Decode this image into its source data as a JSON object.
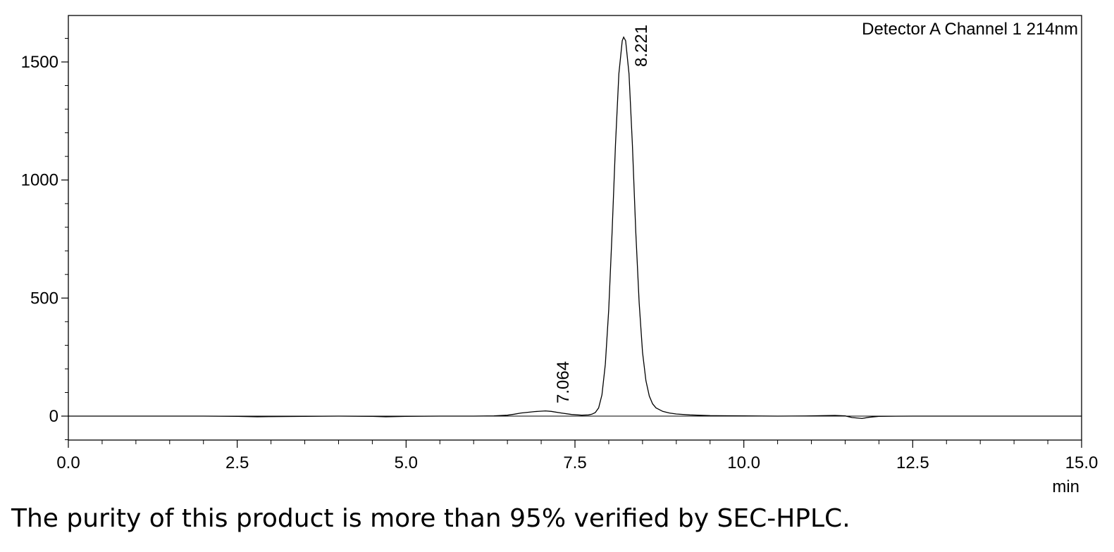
{
  "chart_data": {
    "type": "line",
    "title": "Detector A Channel 1 214nm",
    "xlabel": "min",
    "ylabel": "",
    "xlim": [
      0.0,
      15.0
    ],
    "ylim": [
      -100,
      1700
    ],
    "x_ticks": [
      "0.0",
      "2.5",
      "5.0",
      "7.5",
      "10.0",
      "12.5",
      "15.0"
    ],
    "x_tick_values": [
      0,
      2.5,
      5,
      7.5,
      10,
      12.5,
      15
    ],
    "y_ticks": [
      "0",
      "500",
      "1000",
      "1500"
    ],
    "y_tick_values": [
      0,
      500,
      1000,
      1500
    ],
    "grid": false,
    "series": [
      {
        "x": [
          0.0,
          0.5,
          1.0,
          1.5,
          2.0,
          2.5,
          2.8,
          3.0,
          3.5,
          4.0,
          4.5,
          4.7,
          5.0,
          5.5,
          6.0,
          6.3,
          6.5,
          6.6,
          6.7,
          6.8,
          6.9,
          7.0,
          7.064,
          7.15,
          7.3,
          7.45,
          7.6,
          7.7,
          7.75,
          7.8,
          7.85,
          7.9,
          7.95,
          8.0,
          8.05,
          8.1,
          8.15,
          8.2,
          8.221,
          8.25,
          8.3,
          8.35,
          8.4,
          8.45,
          8.5,
          8.55,
          8.6,
          8.65,
          8.7,
          8.8,
          8.9,
          9.0,
          9.2,
          9.5,
          10.0,
          10.5,
          11.0,
          11.2,
          11.35,
          11.5,
          11.6,
          11.75,
          11.85,
          12.0,
          12.5,
          13.0,
          14.0,
          15.0
        ],
        "y": [
          0,
          0,
          0,
          0,
          0,
          -1,
          -3,
          -2,
          -1,
          0,
          -1,
          -3,
          -1,
          0,
          0,
          1,
          4,
          8,
          13,
          16,
          19,
          21,
          22,
          20,
          13,
          7,
          4,
          5,
          8,
          15,
          35,
          90,
          220,
          450,
          780,
          1150,
          1450,
          1590,
          1605,
          1590,
          1450,
          1150,
          780,
          480,
          270,
          150,
          85,
          52,
          35,
          20,
          13,
          9,
          5,
          2,
          1,
          0,
          1,
          2,
          3,
          1,
          -6,
          -10,
          -5,
          -1,
          0,
          0,
          0,
          0
        ]
      }
    ],
    "annotations": [
      {
        "text": "7.064",
        "x": 7.064,
        "y": 22
      },
      {
        "text": "8.221",
        "x": 8.221,
        "y": 1605
      }
    ]
  },
  "caption": "The purity of this product is more than 95% verified by SEC-HPLC."
}
